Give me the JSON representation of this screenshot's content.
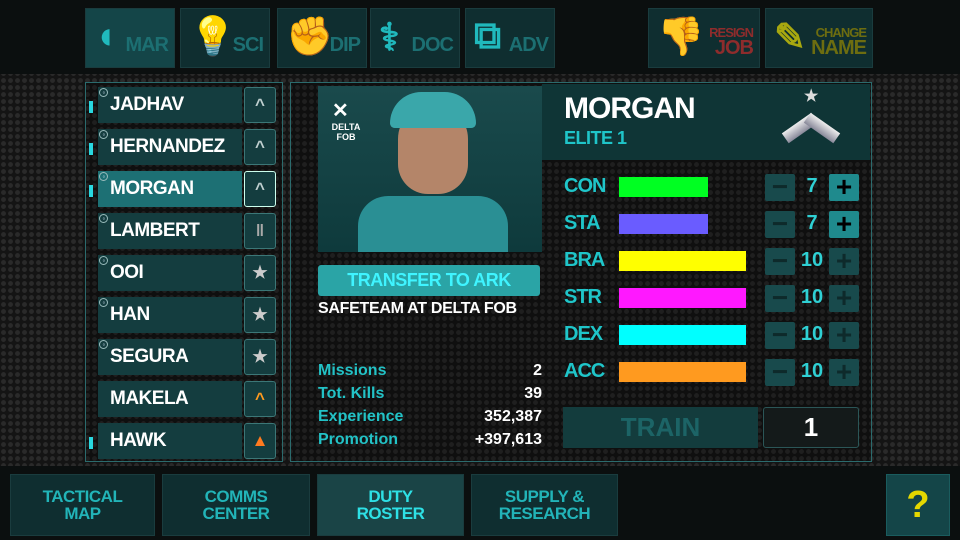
{
  "top_nav": [
    {
      "label": "MAR",
      "icon": "helmet-icon",
      "active": true
    },
    {
      "label": "SCI",
      "icon": "lightbulb-icon"
    },
    {
      "label": "DIP",
      "icon": "handshake-icon"
    },
    {
      "label": "DOC",
      "icon": "caduceus-icon"
    },
    {
      "label": "ADV",
      "icon": "binoculars-icon"
    }
  ],
  "actions": {
    "resign_1": "RESIGN",
    "resign_2": "JOB",
    "change_1": "CHANGE",
    "change_2": "NAME"
  },
  "roster": [
    {
      "name": "JADHAV",
      "rank": "chevron",
      "indicator": true,
      "shield": true
    },
    {
      "name": "HERNANDEZ",
      "rank": "chevron",
      "indicator": true,
      "shield": true
    },
    {
      "name": "MORGAN",
      "rank": "chevron",
      "indicator": true,
      "shield": true,
      "selected": true
    },
    {
      "name": "LAMBERT",
      "rank": "bars",
      "shield": true
    },
    {
      "name": "OOI",
      "rank": "star",
      "shield": true
    },
    {
      "name": "HAN",
      "rank": "star",
      "shield": true
    },
    {
      "name": "SEGURA",
      "rank": "star",
      "shield": true
    },
    {
      "name": "MAKELA",
      "rank": "orange-chevron"
    },
    {
      "name": "HAWK",
      "rank": "orange-insignia",
      "indicator": true
    }
  ],
  "soldier": {
    "name": "MORGAN",
    "rank_title": "ELITE 1",
    "base": "DELTA FOB",
    "transfer_label": "TRANSFER TO ARK",
    "assignment": "SAFETEAM AT DELTA FOB",
    "records": [
      {
        "label": "Missions",
        "value": "2"
      },
      {
        "label": "Tot. Kills",
        "value": "39"
      },
      {
        "label": "Experience",
        "value": "352,387"
      },
      {
        "label": "Promotion",
        "value": "+397,613"
      }
    ],
    "stats": [
      {
        "label": "CON",
        "value": "7",
        "color": "#00ff22",
        "plus_enabled": true
      },
      {
        "label": "STA",
        "value": "7",
        "color": "#6a5cff",
        "plus_enabled": true
      },
      {
        "label": "BRA",
        "value": "10",
        "color": "#ffff00"
      },
      {
        "label": "STR",
        "value": "10",
        "color": "#ff18ff"
      },
      {
        "label": "DEX",
        "value": "10",
        "color": "#00ffff"
      },
      {
        "label": "ACC",
        "value": "10",
        "color": "#ff9a1f"
      }
    ],
    "stat_max": 10,
    "train_label": "TRAIN",
    "train_points": "1"
  },
  "bottom_nav": [
    {
      "l1": "TACTICAL",
      "l2": "MAP"
    },
    {
      "l1": "COMMS",
      "l2": "CENTER"
    },
    {
      "l1": "DUTY",
      "l2": "ROSTER",
      "active": true
    },
    {
      "l1": "SUPPLY &",
      "l2": "RESEARCH"
    }
  ],
  "minus": "−",
  "plus": "+",
  "help": "?"
}
